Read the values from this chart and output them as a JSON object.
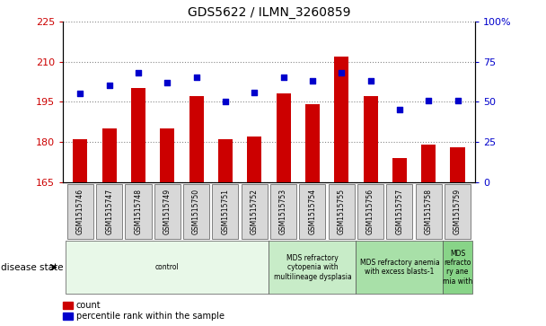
{
  "title": "GDS5622 / ILMN_3260859",
  "samples": [
    "GSM1515746",
    "GSM1515747",
    "GSM1515748",
    "GSM1515749",
    "GSM1515750",
    "GSM1515751",
    "GSM1515752",
    "GSM1515753",
    "GSM1515754",
    "GSM1515755",
    "GSM1515756",
    "GSM1515757",
    "GSM1515758",
    "GSM1515759"
  ],
  "counts": [
    181,
    185,
    200,
    185,
    197,
    181,
    182,
    198,
    194,
    212,
    197,
    174,
    179,
    178
  ],
  "percentiles": [
    55,
    60,
    68,
    62,
    65,
    50,
    56,
    65,
    63,
    68,
    63,
    45,
    51,
    51
  ],
  "ylim_left": [
    165,
    225
  ],
  "ylim_right": [
    0,
    100
  ],
  "yticks_left": [
    165,
    180,
    195,
    210,
    225
  ],
  "yticks_right": [
    0,
    25,
    50,
    75,
    100
  ],
  "bar_color": "#cc0000",
  "dot_color": "#0000cc",
  "bar_bottom": 165,
  "disease_groups": [
    {
      "label": "control",
      "start": 0,
      "end": 7,
      "color": "#e8f8e8"
    },
    {
      "label": "MDS refractory\ncytopenia with\nmultilineage dysplasia",
      "start": 7,
      "end": 10,
      "color": "#c8ecc8"
    },
    {
      "label": "MDS refractory anemia\nwith excess blasts-1",
      "start": 10,
      "end": 13,
      "color": "#a8e0a8"
    },
    {
      "label": "MDS\nrefracto\nry ane\nmia with",
      "start": 13,
      "end": 14,
      "color": "#88d488"
    }
  ],
  "grid_color": "#888888",
  "background_color": "#ffffff",
  "tick_label_color_left": "#cc0000",
  "tick_label_color_right": "#0000cc",
  "disease_state_label": "disease state"
}
